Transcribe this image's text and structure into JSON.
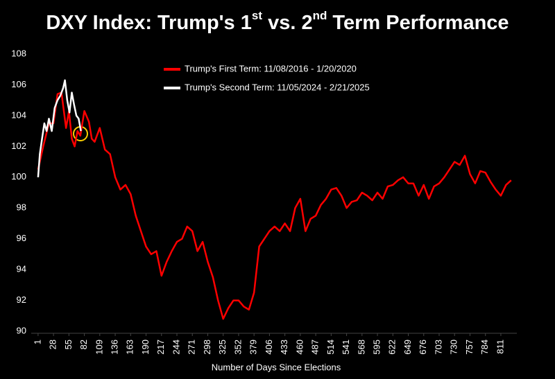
{
  "chart_data": {
    "type": "line",
    "title": "DXY Index: Trump's 1st vs. 2nd Term Performance",
    "x_label": "Number of Days Since Elections",
    "xlim": [
      -11,
      839
    ],
    "xticks": [
      1,
      28,
      55,
      82,
      109,
      136,
      163,
      190,
      217,
      244,
      271,
      298,
      325,
      352,
      379,
      406,
      433,
      460,
      487,
      514,
      541,
      568,
      595,
      622,
      649,
      676,
      703,
      730,
      757,
      784,
      811
    ],
    "ylim": [
      90,
      108
    ],
    "yticks": [
      90,
      92,
      94,
      96,
      98,
      100,
      102,
      104,
      106,
      108
    ],
    "grid": false,
    "legend": "top",
    "series": [
      {
        "name": "Trump's First Term: 11/08/2016 - 1/20/2020",
        "color": "#ff0000",
        "x": [
          1,
          10,
          20,
          28,
          35,
          42,
          50,
          55,
          60,
          65,
          70,
          75,
          82,
          90,
          95,
          100,
          109,
          118,
          127,
          136,
          145,
          154,
          163,
          172,
          181,
          190,
          199,
          208,
          217,
          226,
          235,
          244,
          253,
          262,
          271,
          280,
          289,
          298,
          307,
          316,
          325,
          334,
          343,
          352,
          361,
          370,
          379,
          388,
          397,
          406,
          415,
          424,
          433,
          442,
          451,
          460,
          469,
          478,
          487,
          496,
          505,
          514,
          523,
          532,
          541,
          550,
          559,
          568,
          577,
          586,
          595,
          604,
          613,
          622,
          631,
          640,
          649,
          658,
          667,
          676,
          685,
          694,
          703,
          712,
          721,
          730,
          739,
          748,
          757,
          766,
          775,
          784,
          793,
          802,
          811,
          820,
          829
        ],
        "values": [
          100.5,
          102,
          103.5,
          103.5,
          105.4,
          105.5,
          103.2,
          104.3,
          102.5,
          102,
          103,
          102.7,
          104.3,
          103.6,
          102.5,
          102.3,
          103.2,
          101.8,
          101.5,
          100,
          99.2,
          99.5,
          98.9,
          97.5,
          96.5,
          95.5,
          95,
          95.2,
          93.6,
          94.5,
          95.2,
          95.8,
          96,
          96.8,
          96.5,
          95.2,
          95.8,
          94.5,
          93.5,
          92,
          90.8,
          91.5,
          92,
          92,
          91.6,
          91.4,
          92.5,
          95.5,
          96,
          96.5,
          96.8,
          96.5,
          97,
          96.5,
          98,
          98.6,
          96.5,
          97.3,
          97.5,
          98.2,
          98.6,
          99.2,
          99.3,
          98.8,
          98,
          98.4,
          98.5,
          99,
          98.8,
          98.5,
          99,
          98.6,
          99.4,
          99.5,
          99.8,
          100,
          99.6,
          99.6,
          98.8,
          99.5,
          98.6,
          99.4,
          99.6,
          100,
          100.5,
          101,
          100.8,
          101.4,
          100.2,
          99.6,
          100.4,
          100.3,
          99.7,
          99.2,
          98.8,
          99.5,
          99.8
        ]
      },
      {
        "name": "Trump's Second Term: 11/05/2024 - 2/21/2025",
        "color": "#ffffff",
        "x": [
          1,
          4,
          8,
          12,
          16,
          20,
          25,
          30,
          35,
          40,
          45,
          48,
          52,
          56,
          60,
          64,
          68,
          72,
          76
        ],
        "values": [
          100,
          101.5,
          102.5,
          103.5,
          103,
          103.8,
          103,
          104.5,
          105,
          105.3,
          105.8,
          106.3,
          105,
          104.2,
          105.5,
          104.7,
          104,
          103.8,
          103
        ]
      }
    ]
  }
}
